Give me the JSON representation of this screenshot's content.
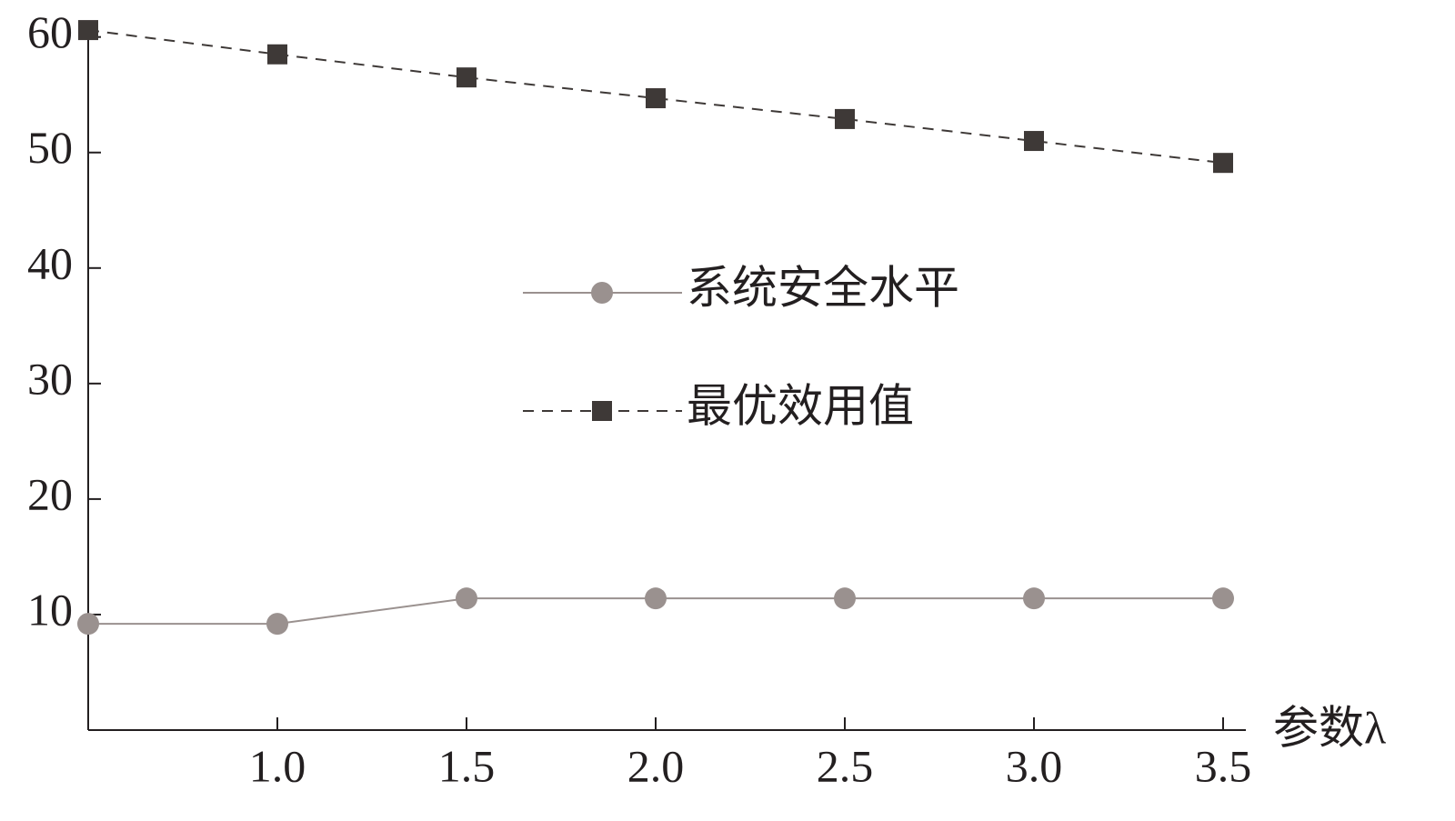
{
  "chart_data": {
    "type": "line",
    "x_label": "参数λ",
    "x": [
      0.5,
      1.0,
      1.5,
      2.0,
      2.5,
      3.0,
      3.5
    ],
    "series": [
      {
        "name": "系统安全水平",
        "color": "#9a918f",
        "style": "solid",
        "marker": "circle",
        "values": [
          9.2,
          9.2,
          11.4,
          11.4,
          11.4,
          11.4,
          11.4
        ]
      },
      {
        "name": "最优效用值",
        "color": "#3e3937",
        "style": "dashed",
        "marker": "square",
        "values": [
          60.6,
          58.5,
          56.5,
          54.7,
          52.9,
          51.0,
          49.1
        ]
      }
    ],
    "xlim": [
      0.5,
      3.56
    ],
    "ylim": [
      0,
      61
    ],
    "xticks": [
      {
        "value": 1.0,
        "label": "1.0"
      },
      {
        "value": 1.5,
        "label": "1.5"
      },
      {
        "value": 2.0,
        "label": "2.0"
      },
      {
        "value": 2.5,
        "label": "2.5"
      },
      {
        "value": 3.0,
        "label": "3.0"
      },
      {
        "value": 3.5,
        "label": "3.5"
      }
    ],
    "yticks": [
      10,
      20,
      30,
      40,
      50,
      60
    ],
    "grid": false
  }
}
